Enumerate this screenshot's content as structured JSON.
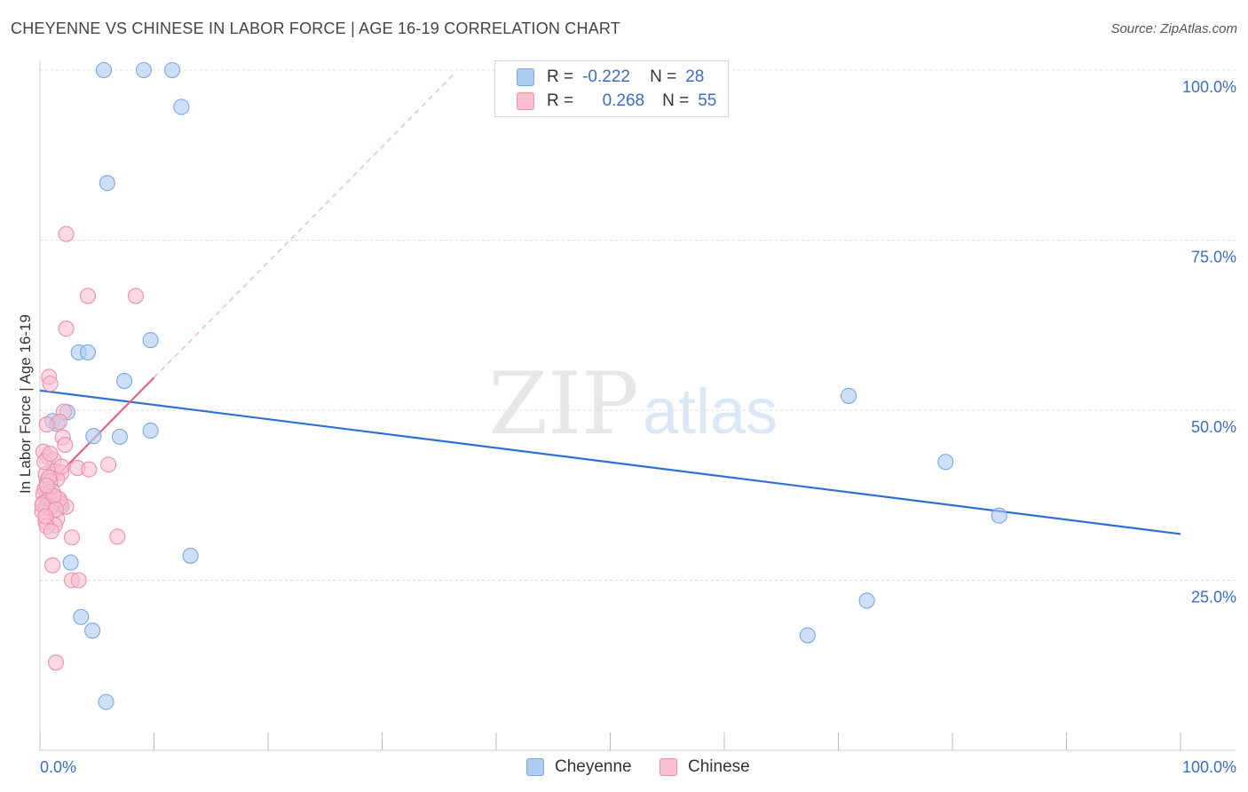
{
  "header": {
    "title": "CHEYENNE VS CHINESE IN LABOR FORCE | AGE 16-19 CORRELATION CHART",
    "source": "Source: ZipAtlas.com"
  },
  "watermark": {
    "zip": "ZIP",
    "atlas": "atlas"
  },
  "legend": {
    "rows": [
      {
        "r_label": "R =",
        "r_value": "-0.222",
        "n_label": "N =",
        "n_value": "28"
      },
      {
        "r_label": "R =",
        "r_value": "0.268",
        "n_label": "N =",
        "n_value": "55"
      }
    ]
  },
  "bottom_legend": {
    "cheyenne": "Cheyenne",
    "chinese": "Chinese"
  },
  "colors": {
    "cheyenne_fill": "#aecbf2",
    "cheyenne_stroke": "#7aa6e2",
    "cheyenne_line": "#2f6fd1",
    "chinese_fill": "#f7bfd0",
    "chinese_stroke": "#ee8fac",
    "chinese_line": "#e8608e",
    "axis_text": "#3a6fc4",
    "grid": "#dddddd"
  },
  "chart_data": {
    "type": "scatter",
    "title": "CHEYENNE VS CHINESE IN LABOR FORCE | AGE 16-19 CORRELATION CHART",
    "xlabel": "",
    "ylabel": "In Labor Force | Age 16-19",
    "xlim": [
      0,
      100
    ],
    "ylim": [
      0,
      100
    ],
    "x_tick_labels": [
      "0.0%",
      "100.0%"
    ],
    "y_ticks": [
      25,
      50,
      75,
      100
    ],
    "y_tick_labels": [
      "25.0%",
      "50.0%",
      "75.0%",
      "100.0%"
    ],
    "grid": true,
    "series": [
      {
        "name": "Cheyenne",
        "r": -0.222,
        "n": 28,
        "trend": {
          "x": [
            0,
            100
          ],
          "y": [
            52.9,
            31.8
          ]
        },
        "points": [
          [
            5.6,
            100
          ],
          [
            9.1,
            100
          ],
          [
            11.6,
            100
          ],
          [
            12.4,
            94.6
          ],
          [
            5.9,
            83.4
          ],
          [
            9.7,
            60.3
          ],
          [
            3.4,
            58.5
          ],
          [
            4.2,
            58.5
          ],
          [
            7.4,
            54.3
          ],
          [
            1.1,
            48.4
          ],
          [
            2.4,
            49.7
          ],
          [
            4.7,
            46.2
          ],
          [
            7.0,
            46.1
          ],
          [
            9.7,
            47.0
          ],
          [
            0.6,
            39.6
          ],
          [
            1.9,
            35.9
          ],
          [
            2.7,
            27.6
          ],
          [
            13.2,
            28.6
          ],
          [
            3.6,
            19.6
          ],
          [
            4.6,
            17.6
          ],
          [
            5.8,
            7.1
          ],
          [
            70.9,
            52.1
          ],
          [
            79.4,
            42.4
          ],
          [
            84.1,
            34.5
          ],
          [
            67.3,
            16.9
          ],
          [
            72.5,
            22.0
          ],
          [
            1.5,
            48.0
          ],
          [
            0.8,
            37.0
          ]
        ]
      },
      {
        "name": "Chinese",
        "r": 0.268,
        "n": 55,
        "trend": {
          "x": [
            0,
            10
          ],
          "y": [
            37.8,
            54.8
          ],
          "dashed_extension": {
            "x": [
              10,
              36.4
            ],
            "y": [
              54.8,
              99.6
            ]
          }
        },
        "points": [
          [
            2.3,
            75.9
          ],
          [
            4.2,
            66.8
          ],
          [
            8.4,
            66.8
          ],
          [
            2.3,
            62.0
          ],
          [
            0.8,
            54.9
          ],
          [
            0.9,
            53.9
          ],
          [
            2.1,
            49.8
          ],
          [
            1.7,
            48.3
          ],
          [
            0.6,
            47.9
          ],
          [
            2.0,
            46.0
          ],
          [
            2.2,
            44.9
          ],
          [
            0.3,
            43.9
          ],
          [
            0.7,
            43.1
          ],
          [
            1.2,
            42.7
          ],
          [
            6.0,
            42.0
          ],
          [
            3.3,
            41.5
          ],
          [
            4.3,
            41.3
          ],
          [
            1.3,
            41.0
          ],
          [
            1.9,
            40.8
          ],
          [
            0.5,
            40.6
          ],
          [
            1.5,
            39.9
          ],
          [
            0.9,
            39.5
          ],
          [
            0.4,
            38.4
          ],
          [
            1.1,
            38.1
          ],
          [
            0.3,
            37.6
          ],
          [
            1.6,
            37.0
          ],
          [
            0.7,
            36.9
          ],
          [
            1.1,
            36.6
          ],
          [
            0.3,
            36.4
          ],
          [
            1.8,
            36.3
          ],
          [
            2.3,
            35.8
          ],
          [
            0.6,
            35.9
          ],
          [
            0.9,
            35.6
          ],
          [
            0.2,
            35.1
          ],
          [
            1.5,
            34.0
          ],
          [
            0.5,
            33.6
          ],
          [
            1.3,
            33.1
          ],
          [
            0.6,
            32.9
          ],
          [
            1.0,
            32.2
          ],
          [
            2.8,
            31.3
          ],
          [
            6.8,
            31.4
          ],
          [
            1.1,
            27.2
          ],
          [
            2.8,
            25.0
          ],
          [
            3.4,
            25.0
          ],
          [
            1.4,
            12.9
          ],
          [
            0.8,
            40.1
          ],
          [
            1.7,
            36.9
          ],
          [
            0.4,
            42.4
          ],
          [
            1.2,
            37.4
          ],
          [
            0.6,
            38.9
          ],
          [
            1.9,
            41.7
          ],
          [
            0.2,
            36.1
          ],
          [
            1.4,
            35.4
          ],
          [
            0.9,
            43.6
          ],
          [
            0.5,
            34.4
          ]
        ]
      }
    ]
  }
}
